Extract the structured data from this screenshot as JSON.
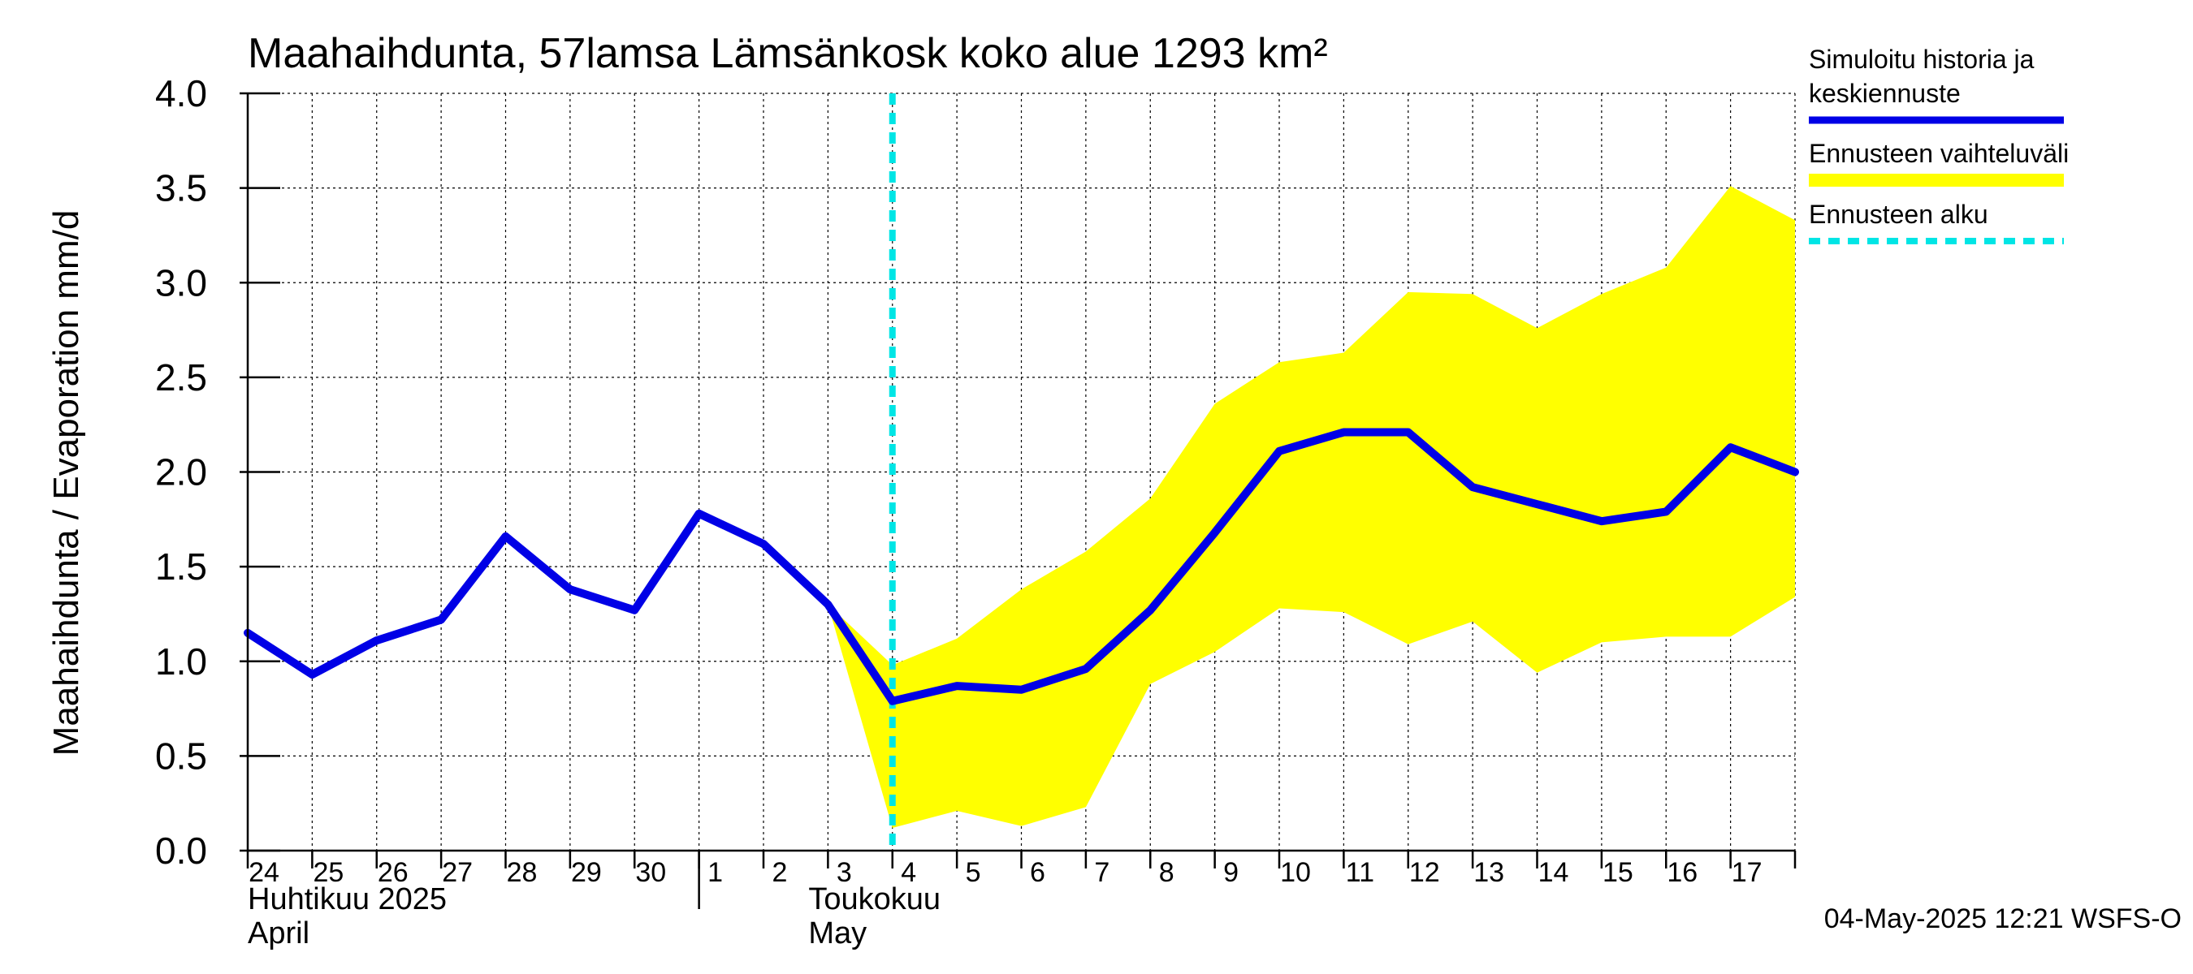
{
  "chart_data": {
    "type": "line",
    "title": "Maahaihdunta, 57lamsa Lämsänkosk koko alue 1293 km²",
    "ylabel": "Maahaihdunta / Evaporation   mm/d",
    "ylim": [
      0,
      4
    ],
    "y_ticks": [
      "0.0",
      "0.5",
      "1.0",
      "1.5",
      "2.0",
      "2.5",
      "3.0",
      "3.5",
      "4.0"
    ],
    "x_ticks": [
      "24",
      "25",
      "26",
      "27",
      "28",
      "29",
      "30",
      "1",
      "2",
      "3",
      "4",
      "5",
      "6",
      "7",
      "8",
      "9",
      "10",
      "11",
      "12",
      "13",
      "14",
      "15",
      "16",
      "17"
    ],
    "month_labels": [
      {
        "line1": "Huhtikuu  2025",
        "line2": "April"
      },
      {
        "line1": "Toukokuu",
        "line2": "May"
      }
    ],
    "grid": true,
    "legend_position": "right",
    "forecast_start_date": "4",
    "series": [
      {
        "name": "Simuloitu historia ja keskiennuste",
        "color": "#0000e6",
        "x": [
          "24",
          "25",
          "26",
          "27",
          "28",
          "29",
          "30",
          "1",
          "2",
          "3",
          "4",
          "5",
          "6",
          "7",
          "8",
          "9",
          "10",
          "11",
          "12",
          "13",
          "14",
          "15",
          "16",
          "17",
          "end"
        ],
        "values": [
          1.15,
          0.93,
          1.11,
          1.22,
          1.66,
          1.38,
          1.27,
          1.78,
          1.62,
          1.3,
          0.79,
          0.87,
          0.85,
          0.96,
          1.27,
          1.68,
          2.11,
          2.21,
          2.21,
          1.92,
          1.83,
          1.74,
          1.79,
          2.13,
          2.0
        ]
      },
      {
        "name": "Ennusteen vaihteluväli",
        "color": "#ffff00",
        "x": [
          "3",
          "4",
          "5",
          "6",
          "7",
          "8",
          "9",
          "10",
          "11",
          "12",
          "13",
          "14",
          "15",
          "16",
          "17",
          "end"
        ],
        "upper": [
          1.3,
          0.98,
          1.12,
          1.38,
          1.58,
          1.86,
          2.36,
          2.58,
          2.63,
          2.95,
          2.94,
          2.76,
          2.94,
          3.08,
          3.51,
          3.33
        ],
        "lower": [
          1.3,
          0.12,
          0.21,
          0.13,
          0.23,
          0.88,
          1.05,
          1.28,
          1.26,
          1.09,
          1.21,
          0.94,
          1.1,
          1.13,
          1.13,
          1.34
        ]
      }
    ],
    "legend": [
      {
        "label_lines": [
          "Simuloitu historia ja",
          "keskiennuste"
        ],
        "color": "#0000e6",
        "style": "solid"
      },
      {
        "label_lines": [
          "Ennusteen vaihteluväli"
        ],
        "color": "#ffff00",
        "style": "band"
      },
      {
        "label_lines": [
          "Ennusteen alku"
        ],
        "color": "#00e5e5",
        "style": "dashed"
      }
    ],
    "footer": "04-May-2025 12:21 WSFS-O"
  }
}
